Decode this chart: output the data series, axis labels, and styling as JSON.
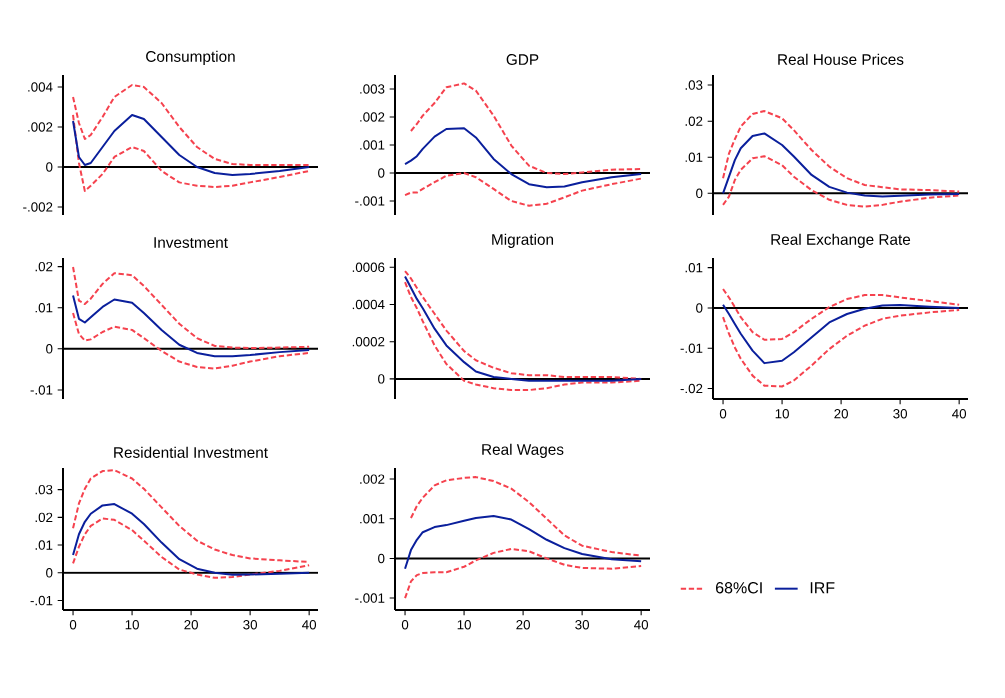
{
  "chart_data": [
    {
      "type": "line",
      "title": "Consumption",
      "x": [
        0,
        1,
        2,
        3,
        5,
        7,
        10,
        12,
        15,
        18,
        21,
        24,
        27,
        30,
        35,
        40
      ],
      "xlim": [
        -1.7,
        41.5
      ],
      "ylim": [
        -0.0024,
        0.0046
      ],
      "yticks": [
        {
          "value": -0.002,
          "label": "-.002"
        },
        0,
        {
          "value": 0.002,
          "label": ".002"
        },
        {
          "value": 0.004,
          "label": ".004"
        }
      ],
      "tick_labels": "y",
      "grid": false,
      "ref_lines": [
        {
          "axis": "y",
          "value": 0,
          "color": "#000000"
        }
      ],
      "series": [
        {
          "color": "#f5424e",
          "line_style": "dashed",
          "values": [
            0.0035,
            0.0022,
            0.0014,
            0.0016,
            0.0025,
            0.0035,
            0.0041,
            0.004,
            0.0032,
            0.002,
            0.001,
            0.0004,
            0.00015,
            0.0001,
            0.0001,
            0.0001
          ]
        },
        {
          "color": "#f5424e",
          "line_style": "dashed",
          "values": [
            0.0026,
            0.0002,
            -0.0012,
            -0.00094,
            -0.00035,
            0.0005,
            0.001,
            0.0008,
            -0.0002,
            -0.00077,
            -0.00094,
            -0.001,
            -0.00094,
            -0.00077,
            -0.0005,
            -0.0002
          ]
        },
        {
          "color": "#0a1f9c",
          "line_style": "solid",
          "values": [
            0.0023,
            0.0005,
            0.0001,
            0.0002,
            0.001,
            0.0018,
            0.0026,
            0.0024,
            0.0015,
            0.0006,
            0,
            -0.0003,
            -0.0004,
            -0.00035,
            -0.0002,
            0
          ]
        }
      ]
    },
    {
      "type": "line",
      "title": "GDP",
      "x": [
        0,
        1,
        2,
        3,
        5,
        7,
        10,
        12,
        15,
        18,
        21,
        24,
        27,
        30,
        35,
        40
      ],
      "xlim": [
        -1.7,
        41.5
      ],
      "ylim": [
        -0.0015,
        0.0035
      ],
      "yticks": [
        {
          "value": -0.001,
          "label": "-.001"
        },
        0,
        {
          "value": 0.001,
          "label": ".001"
        },
        {
          "value": 0.002,
          "label": ".002"
        },
        {
          "value": 0.003,
          "label": ".003"
        }
      ],
      "tick_labels": "y",
      "grid": false,
      "ref_lines": [
        {
          "axis": "y",
          "value": 0,
          "color": "#000000"
        }
      ],
      "series": [
        {
          "color": "#f5424e",
          "line_style": "dashed",
          "values": [
            null,
            0.0015,
            0.00175,
            0.00205,
            0.0025,
            0.00306,
            0.0032,
            0.00294,
            0.00205,
            0.00098,
            0.00026,
            0,
            -4e-05,
            2e-05,
            0.00012,
            0.00014
          ]
        },
        {
          "color": "#f5424e",
          "line_style": "dashed",
          "values": [
            -0.00079,
            -0.0007,
            -0.0007,
            -0.00057,
            -0.00033,
            -0.0001,
            0,
            -0.00015,
            -0.00057,
            -0.001,
            -0.00117,
            -0.0011,
            -0.00087,
            -0.00063,
            -0.0004,
            -0.0002
          ]
        },
        {
          "color": "#0a1f9c",
          "line_style": "solid",
          "values": [
            0.00032,
            0.00044,
            0.0006,
            0.00086,
            0.0013,
            0.00157,
            0.0016,
            0.00127,
            0.0005,
            -4e-05,
            -0.0004,
            -0.00051,
            -0.00048,
            -0.00033,
            -0.00015,
            -4e-05
          ]
        }
      ]
    },
    {
      "type": "line",
      "title": "Real House Prices",
      "x": [
        0,
        1,
        2,
        3,
        5,
        7,
        10,
        12,
        15,
        18,
        21,
        24,
        27,
        30,
        35,
        40
      ],
      "xlim": [
        -1.7,
        41.5
      ],
      "ylim": [
        -0.006,
        0.0328
      ],
      "yticks": [
        0,
        {
          "value": 0.01,
          "label": ".01"
        },
        {
          "value": 0.02,
          "label": ".02"
        },
        {
          "value": 0.03,
          "label": ".03"
        }
      ],
      "tick_labels": "y",
      "grid": false,
      "ref_lines": [
        {
          "axis": "y",
          "value": 0,
          "color": "#000000"
        }
      ],
      "series": [
        {
          "color": "#f5424e",
          "line_style": "dashed",
          "values": [
            0.0042,
            0.011,
            0.015,
            0.0185,
            0.022,
            0.0228,
            0.0208,
            0.0175,
            0.012,
            0.0074,
            0.0042,
            0.0023,
            0.0017,
            0.0011,
            0.0009,
            0.0005
          ]
        },
        {
          "color": "#f5424e",
          "line_style": "dashed",
          "values": [
            -0.0032,
            -0.0009,
            0.0037,
            0.0065,
            0.0097,
            0.0103,
            0.0078,
            0.0046,
            0.0009,
            -0.0018,
            -0.0032,
            -0.0037,
            -0.0032,
            -0.0023,
            -0.0012,
            -0.0006
          ]
        },
        {
          "color": "#0a1f9c",
          "line_style": "solid",
          "values": [
            0,
            0.0046,
            0.0092,
            0.0125,
            0.0159,
            0.0166,
            0.0134,
            0.0102,
            0.0051,
            0.0018,
            0.0002,
            -0.0006,
            -0.0009,
            -0.0007,
            -0.0003,
            -0.0002
          ]
        }
      ]
    },
    {
      "type": "line",
      "title": "Investment",
      "x": [
        0,
        1,
        2,
        3,
        5,
        7,
        10,
        12,
        15,
        18,
        21,
        24,
        27,
        30,
        35,
        40
      ],
      "xlim": [
        -1.7,
        41.5
      ],
      "ylim": [
        -0.0122,
        0.0221
      ],
      "yticks": [
        {
          "value": -0.01,
          "label": "-.01"
        },
        0,
        {
          "value": 0.01,
          "label": ".01"
        },
        {
          "value": 0.02,
          "label": ".02"
        }
      ],
      "tick_labels": "y",
      "grid": false,
      "ref_lines": [
        {
          "axis": "y",
          "value": 0,
          "color": "#000000"
        }
      ],
      "series": [
        {
          "color": "#f5424e",
          "line_style": "dashed",
          "values": [
            0.0199,
            0.0117,
            0.0109,
            0.0122,
            0.0158,
            0.0184,
            0.0179,
            0.0153,
            0.0107,
            0.0061,
            0.0026,
            0.0007,
            0.0003,
            0.0002,
            0.0003,
            0.0005
          ]
        },
        {
          "color": "#f5424e",
          "line_style": "dashed",
          "values": [
            0.0087,
            0.0036,
            0.002,
            0.0023,
            0.0041,
            0.0054,
            0.0046,
            0.0026,
            -0.0005,
            -0.0031,
            -0.0044,
            -0.0048,
            -0.0041,
            -0.0031,
            -0.0018,
            -0.001
          ]
        },
        {
          "color": "#0a1f9c",
          "line_style": "solid",
          "values": [
            0.013,
            0.0073,
            0.0064,
            0.0077,
            0.0102,
            0.012,
            0.0112,
            0.0087,
            0.0046,
            0.001,
            -0.001,
            -0.0018,
            -0.0018,
            -0.0015,
            -0.0008,
            -0.0003
          ]
        }
      ]
    },
    {
      "type": "line",
      "title": "Migration",
      "x": [
        0,
        1,
        2,
        3,
        5,
        7,
        10,
        12,
        15,
        18,
        21,
        24,
        27,
        30,
        35,
        40
      ],
      "xlim": [
        -1.7,
        41.5
      ],
      "ylim": [
        -0.000108,
        0.00065
      ],
      "yticks": [
        0,
        {
          "value": 0.0002,
          "label": ".0002"
        },
        {
          "value": 0.0004,
          "label": ".0004"
        },
        {
          "value": 0.0006,
          "label": ".0006"
        }
      ],
      "tick_labels": "y",
      "grid": false,
      "ref_lines": [
        {
          "axis": "y",
          "value": 0,
          "color": "#000000"
        }
      ],
      "series": [
        {
          "color": "#f5424e",
          "line_style": "dashed",
          "values": [
            0.00058,
            0.00054,
            0.00049,
            0.00044,
            0.00035,
            0.00026,
            0.00015,
            0.0001,
            6e-05,
            3e-05,
            2e-05,
            2e-05,
            1e-05,
            1e-05,
            1e-05,
            0
          ]
        },
        {
          "color": "#f5424e",
          "line_style": "dashed",
          "values": [
            0.00052,
            0.00044,
            0.00038,
            0.00031,
            0.00018,
            8e-05,
            -1e-05,
            -3e-05,
            -5e-05,
            -6e-05,
            -6e-05,
            -5e-05,
            -3e-05,
            -2e-05,
            -2e-05,
            -1e-05
          ]
        },
        {
          "color": "#0a1f9c",
          "line_style": "solid",
          "values": [
            0.00055,
            0.00049,
            0.00043,
            0.00038,
            0.00027,
            0.00018,
            9e-05,
            4e-05,
            1e-05,
            0,
            -1e-05,
            -1e-05,
            -1e-05,
            -1e-05,
            -1e-05,
            0
          ]
        }
      ]
    },
    {
      "type": "line",
      "title": "Real Exchange Rate",
      "x": [
        0,
        1,
        2,
        3,
        5,
        7,
        10,
        12,
        15,
        18,
        21,
        24,
        27,
        30,
        35,
        40
      ],
      "xlim": [
        -1.7,
        41.5
      ],
      "ylim": [
        -0.0226,
        0.0124
      ],
      "xticks": [
        0,
        10,
        20,
        30,
        40
      ],
      "yticks": [
        {
          "value": -0.02,
          "label": "-.02"
        },
        {
          "value": -0.01,
          "label": "-.01"
        },
        0,
        {
          "value": 0.01,
          "label": ".01"
        }
      ],
      "grid": false,
      "ref_lines": [
        {
          "axis": "y",
          "value": 0,
          "color": "#000000"
        }
      ],
      "series": [
        {
          "color": "#f5424e",
          "line_style": "dashed",
          "values": [
            0.0047,
            0.0026,
            0.0002,
            -0.0023,
            -0.006,
            -0.0079,
            -0.0077,
            -0.006,
            -0.0027,
            0.0002,
            0.0022,
            0.0032,
            0.0032,
            0.0026,
            0.0017,
            0.0008
          ]
        },
        {
          "color": "#f5424e",
          "line_style": "dashed",
          "values": [
            -0.0023,
            -0.0064,
            -0.0098,
            -0.0126,
            -0.0168,
            -0.0193,
            -0.0195,
            -0.018,
            -0.0143,
            -0.0102,
            -0.0069,
            -0.0044,
            -0.0027,
            -0.0019,
            -0.0011,
            -0.0005
          ]
        },
        {
          "color": "#0a1f9c",
          "line_style": "solid",
          "values": [
            0.0008,
            -0.0015,
            -0.004,
            -0.0064,
            -0.0106,
            -0.0137,
            -0.0131,
            -0.011,
            -0.0073,
            -0.0036,
            -0.0015,
            -0.0002,
            0.0006,
            0.0007,
            0.0003,
            0
          ]
        }
      ]
    },
    {
      "type": "line",
      "title": "Residential Investment",
      "x": [
        0,
        1,
        2,
        3,
        5,
        7,
        10,
        12,
        15,
        18,
        21,
        24,
        27,
        30,
        35,
        40
      ],
      "xlim": [
        -1.7,
        41.5
      ],
      "ylim": [
        -0.0134,
        0.0378
      ],
      "xticks": [
        0,
        10,
        20,
        30,
        40
      ],
      "yticks": [
        {
          "value": -0.01,
          "label": "-.01"
        },
        0,
        {
          "value": 0.01,
          "label": ".01"
        },
        {
          "value": 0.02,
          "label": ".02"
        },
        {
          "value": 0.03,
          "label": ".03"
        }
      ],
      "grid": false,
      "ref_lines": [
        {
          "axis": "y",
          "value": 0,
          "color": "#000000"
        }
      ],
      "series": [
        {
          "color": "#f5424e",
          "line_style": "dashed",
          "values": [
            0.0161,
            0.025,
            0.0303,
            0.034,
            0.0367,
            0.037,
            0.034,
            0.0303,
            0.0236,
            0.0169,
            0.0116,
            0.0084,
            0.0064,
            0.0052,
            0.0045,
            0.0039
          ]
        },
        {
          "color": "#f5424e",
          "line_style": "dashed",
          "values": [
            0.0034,
            0.0094,
            0.0139,
            0.0169,
            0.0196,
            0.0191,
            0.0154,
            0.0116,
            0.0057,
            0.0012,
            -0.0006,
            -0.0018,
            -0.0015,
            -0.0006,
            0.0007,
            0.0027
          ]
        },
        {
          "color": "#0a1f9c",
          "line_style": "solid",
          "values": [
            0.0064,
            0.0139,
            0.0184,
            0.0213,
            0.0243,
            0.0248,
            0.0213,
            0.0176,
            0.0109,
            0.0049,
            0.0015,
            0,
            -0.0007,
            -0.0006,
            -0.0003,
            0
          ]
        }
      ]
    },
    {
      "type": "line",
      "title": "Real Wages",
      "x": [
        0,
        1,
        2,
        3,
        5,
        7,
        10,
        12,
        15,
        18,
        21,
        24,
        27,
        30,
        35,
        40
      ],
      "xlim": [
        -1.7,
        41.5
      ],
      "ylim": [
        -0.0013,
        0.00228
      ],
      "xticks": [
        0,
        10,
        20,
        30,
        40
      ],
      "yticks": [
        {
          "value": -0.001,
          "label": "-.001"
        },
        0,
        {
          "value": 0.001,
          "label": ".001"
        },
        {
          "value": 0.002,
          "label": ".002"
        }
      ],
      "grid": false,
      "legend": "right",
      "ref_lines": [
        {
          "axis": "y",
          "value": 0,
          "color": "#000000"
        }
      ],
      "series": [
        {
          "name": "68%CI",
          "color": "#f5424e",
          "line_style": "dashed",
          "values": [
            null,
            0.00102,
            0.00132,
            0.00153,
            0.00184,
            0.00197,
            0.00203,
            0.00205,
            0.00195,
            0.00176,
            0.00142,
            0.001,
            0.00058,
            0.00032,
            0.00016,
            7e-05
          ]
        },
        {
          "color": "#f5424e",
          "line_style": "dashed",
          "values": [
            -0.001,
            -0.00058,
            -0.00042,
            -0.00037,
            -0.00035,
            -0.00035,
            -0.00021,
            -5e-05,
            0.00014,
            0.00024,
            0.00018,
            0,
            -0.00016,
            -0.00024,
            -0.00026,
            -0.00019
          ]
        },
        {
          "name": "IRF",
          "color": "#0a1f9c",
          "line_style": "solid",
          "values": [
            -0.00026,
            0.00021,
            0.00047,
            0.00066,
            0.00079,
            0.00084,
            0.00095,
            0.00102,
            0.00107,
            0.00098,
            0.00074,
            0.00047,
            0.00026,
            0.00011,
            -2e-05,
            -7e-05
          ]
        }
      ]
    }
  ]
}
